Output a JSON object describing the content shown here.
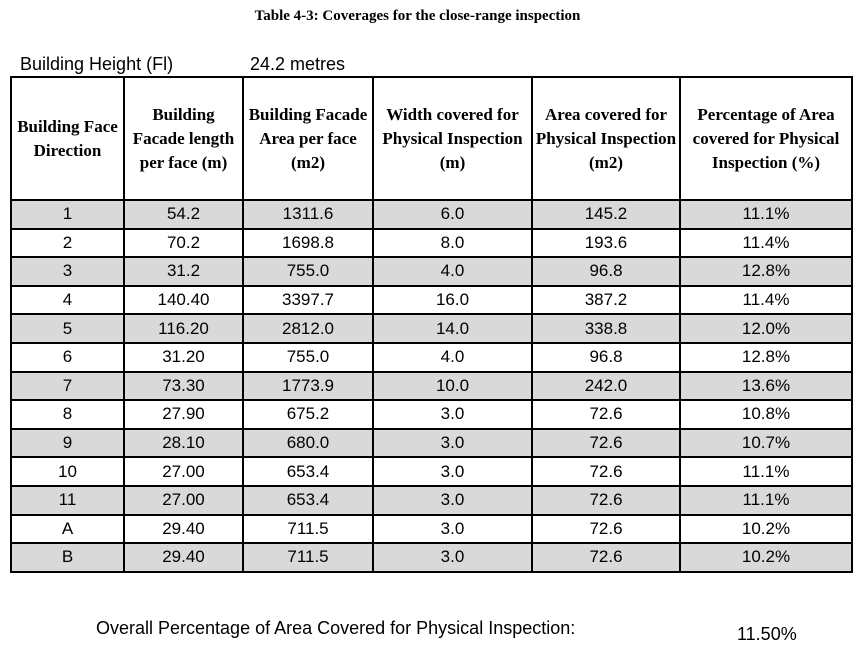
{
  "title": "Table 4-3: Coverages for the close-range inspection",
  "building_height": {
    "label": "Building Height (Fl)",
    "value": "24.2 metres"
  },
  "table": {
    "headers": [
      "Building Face Direction",
      "Building Facade length per face (m)",
      "Building Facade Area per face (m2)",
      "Width covered for Physical Inspection (m)",
      "Area covered for Physical Inspection (m2)",
      "Percentage of Area covered for Physical Inspection (%)"
    ],
    "rows": [
      [
        "1",
        "54.2",
        "1311.6",
        "6.0",
        "145.2",
        "11.1%"
      ],
      [
        "2",
        "70.2",
        "1698.8",
        "8.0",
        "193.6",
        "11.4%"
      ],
      [
        "3",
        "31.2",
        "755.0",
        "4.0",
        "96.8",
        "12.8%"
      ],
      [
        "4",
        "140.40",
        "3397.7",
        "16.0",
        "387.2",
        "11.4%"
      ],
      [
        "5",
        "116.20",
        "2812.0",
        "14.0",
        "338.8",
        "12.0%"
      ],
      [
        "6",
        "31.20",
        "755.0",
        "4.0",
        "96.8",
        "12.8%"
      ],
      [
        "7",
        "73.30",
        "1773.9",
        "10.0",
        "242.0",
        "13.6%"
      ],
      [
        "8",
        "27.90",
        "675.2",
        "3.0",
        "72.6",
        "10.8%"
      ],
      [
        "9",
        "28.10",
        "680.0",
        "3.0",
        "72.6",
        "10.7%"
      ],
      [
        "10",
        "27.00",
        "653.4",
        "3.0",
        "72.6",
        "11.1%"
      ],
      [
        "11",
        "27.00",
        "653.4",
        "3.0",
        "72.6",
        "11.1%"
      ],
      [
        "A",
        "29.40",
        "711.5",
        "3.0",
        "72.6",
        "10.2%"
      ],
      [
        "B",
        "29.40",
        "711.5",
        "3.0",
        "72.6",
        "10.2%"
      ]
    ]
  },
  "overall": {
    "label": "Overall Percentage of Area Covered for Physical Inspection:",
    "value": "11.50%"
  }
}
